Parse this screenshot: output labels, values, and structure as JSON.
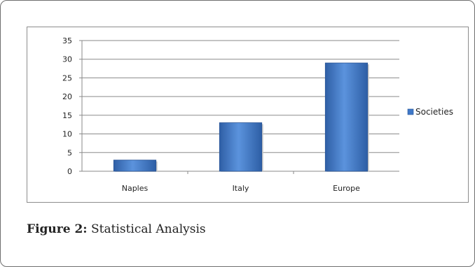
{
  "chart_data": {
    "type": "bar",
    "categories": [
      "Naples",
      "Italy",
      "Europe"
    ],
    "series": [
      {
        "name": "Societies",
        "values": [
          3,
          13,
          29
        ],
        "color": "#3f78c8"
      }
    ],
    "ylim": [
      0,
      35
    ],
    "yticks": [
      0,
      5,
      10,
      15,
      20,
      25,
      30,
      35
    ],
    "grid": true,
    "legend": "right"
  },
  "caption": {
    "label": "Figure 2:",
    "text": " Statistical Analysis"
  }
}
